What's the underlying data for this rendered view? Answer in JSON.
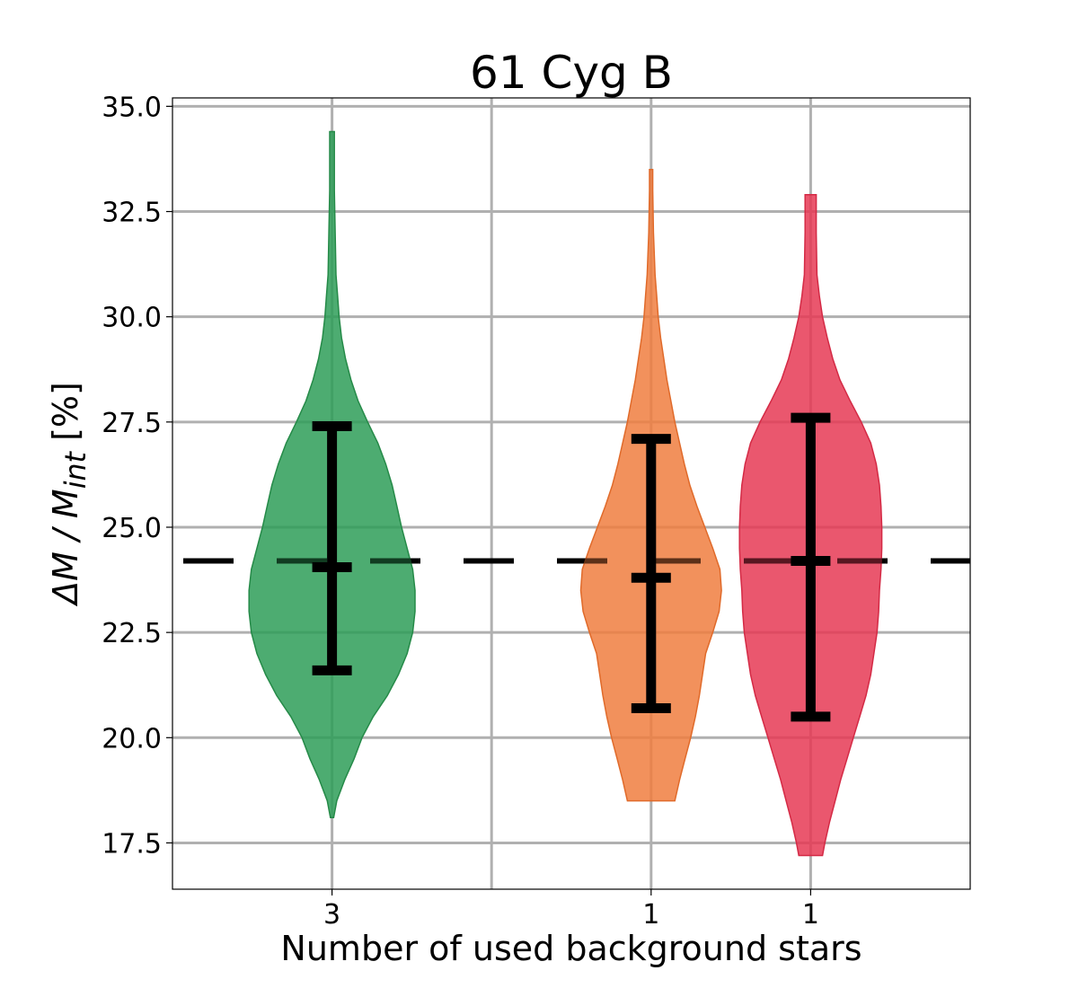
{
  "chart_data": {
    "type": "violin",
    "title": "61 Cyg B",
    "xlabel": "Number of used background stars",
    "ylabel_parts": [
      "ΔM / M",
      "int",
      " [%]"
    ],
    "ylim": [
      16.4,
      35.2
    ],
    "xlim": [
      0,
      5
    ],
    "grid": true,
    "y_ticks": [
      17.5,
      20.0,
      22.5,
      25.0,
      27.5,
      30.0,
      32.5,
      35.0
    ],
    "x_gridlines": [
      1,
      2,
      3,
      4
    ],
    "reference_line": {
      "y": 24.2,
      "style": "dashed",
      "color": "#000000"
    },
    "series": [
      {
        "x": 1,
        "tick_label": "3",
        "color": "#2e9e58",
        "edge": "#258a48",
        "median": 24.05,
        "err_low": 21.6,
        "err_high": 27.4,
        "min": 18.1,
        "max": 34.4,
        "profile": [
          [
            18.1,
            0.02
          ],
          [
            18.5,
            0.06
          ],
          [
            19.0,
            0.16
          ],
          [
            19.5,
            0.28
          ],
          [
            20.0,
            0.38
          ],
          [
            20.5,
            0.52
          ],
          [
            21.0,
            0.7
          ],
          [
            21.5,
            0.84
          ],
          [
            22.0,
            0.95
          ],
          [
            22.5,
            1.02
          ],
          [
            23.0,
            1.05
          ],
          [
            23.5,
            1.05
          ],
          [
            24.0,
            1.02
          ],
          [
            24.5,
            0.95
          ],
          [
            25.0,
            0.88
          ],
          [
            25.5,
            0.82
          ],
          [
            26.0,
            0.76
          ],
          [
            26.5,
            0.68
          ],
          [
            27.0,
            0.58
          ],
          [
            27.5,
            0.45
          ],
          [
            28.0,
            0.33
          ],
          [
            28.5,
            0.24
          ],
          [
            29.0,
            0.17
          ],
          [
            29.5,
            0.12
          ],
          [
            30.0,
            0.09
          ],
          [
            30.5,
            0.07
          ],
          [
            31.0,
            0.05
          ],
          [
            32.0,
            0.04
          ],
          [
            33.0,
            0.03
          ],
          [
            34.0,
            0.03
          ],
          [
            34.4,
            0.03
          ]
        ]
      },
      {
        "x": 3,
        "tick_label": "1",
        "color": "#f07e3f",
        "edge": "#e06a2a",
        "median": 23.8,
        "err_low": 20.7,
        "err_high": 27.1,
        "min": 18.5,
        "max": 33.5,
        "profile": [
          [
            18.5,
            0.3
          ],
          [
            19.0,
            0.36
          ],
          [
            19.5,
            0.43
          ],
          [
            20.0,
            0.5
          ],
          [
            20.5,
            0.56
          ],
          [
            21.0,
            0.61
          ],
          [
            21.5,
            0.65
          ],
          [
            22.0,
            0.69
          ],
          [
            22.5,
            0.78
          ],
          [
            23.0,
            0.86
          ],
          [
            23.5,
            0.89
          ],
          [
            24.0,
            0.87
          ],
          [
            24.5,
            0.78
          ],
          [
            25.0,
            0.68
          ],
          [
            25.5,
            0.58
          ],
          [
            26.0,
            0.49
          ],
          [
            26.5,
            0.42
          ],
          [
            27.0,
            0.36
          ],
          [
            27.5,
            0.3
          ],
          [
            28.0,
            0.25
          ],
          [
            28.5,
            0.2
          ],
          [
            29.0,
            0.16
          ],
          [
            29.5,
            0.12
          ],
          [
            30.0,
            0.09
          ],
          [
            30.5,
            0.07
          ],
          [
            31.0,
            0.05
          ],
          [
            32.0,
            0.03
          ],
          [
            33.0,
            0.02
          ],
          [
            33.5,
            0.02
          ]
        ]
      },
      {
        "x": 4,
        "tick_label": "1",
        "color": "#e63a55",
        "edge": "#d42a45",
        "median": 24.2,
        "err_low": 20.5,
        "err_high": 27.6,
        "min": 17.2,
        "max": 32.9,
        "profile": [
          [
            17.2,
            0.15
          ],
          [
            17.5,
            0.18
          ],
          [
            18.0,
            0.24
          ],
          [
            18.5,
            0.31
          ],
          [
            19.0,
            0.38
          ],
          [
            19.5,
            0.46
          ],
          [
            20.0,
            0.54
          ],
          [
            20.5,
            0.62
          ],
          [
            21.0,
            0.7
          ],
          [
            21.5,
            0.76
          ],
          [
            22.0,
            0.8
          ],
          [
            22.5,
            0.84
          ],
          [
            23.0,
            0.86
          ],
          [
            23.5,
            0.87
          ],
          [
            24.0,
            0.89
          ],
          [
            24.5,
            0.9
          ],
          [
            25.0,
            0.9
          ],
          [
            25.5,
            0.89
          ],
          [
            26.0,
            0.87
          ],
          [
            26.5,
            0.83
          ],
          [
            27.0,
            0.76
          ],
          [
            27.5,
            0.64
          ],
          [
            28.0,
            0.5
          ],
          [
            28.5,
            0.37
          ],
          [
            29.0,
            0.28
          ],
          [
            29.5,
            0.21
          ],
          [
            30.0,
            0.15
          ],
          [
            30.5,
            0.11
          ],
          [
            31.0,
            0.08
          ],
          [
            32.0,
            0.07
          ],
          [
            32.9,
            0.07
          ]
        ]
      }
    ]
  }
}
